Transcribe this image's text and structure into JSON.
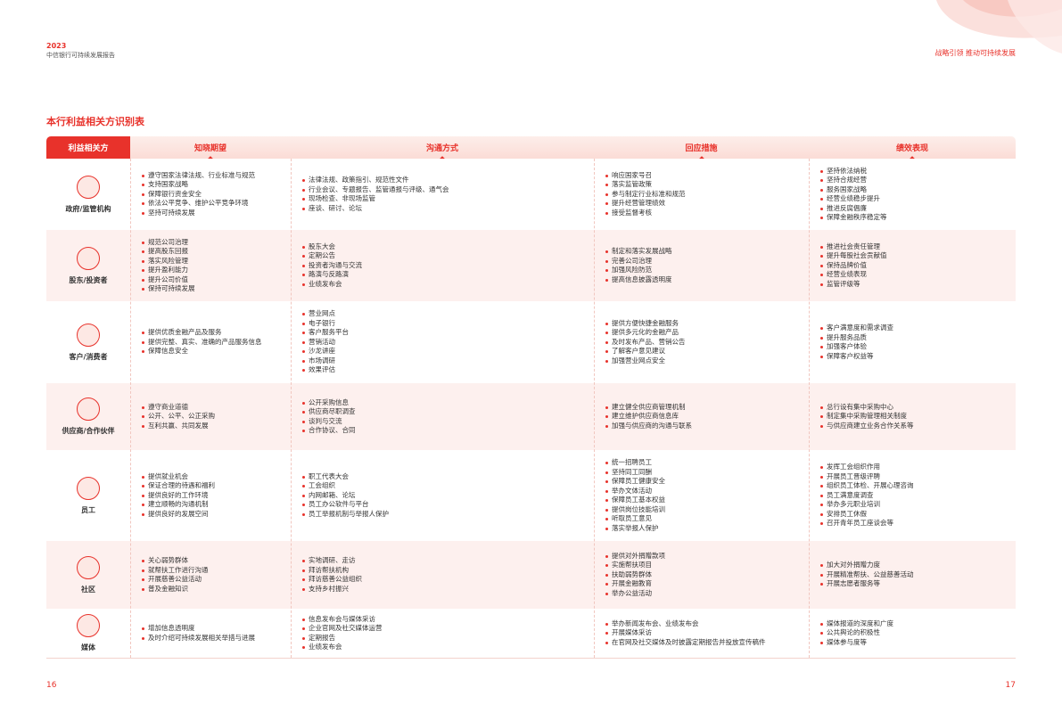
{
  "header": {
    "year": "2023",
    "report": "中信银行可持续发展报告",
    "section": "战略引领 推动可持续发展"
  },
  "title": "本行利益相关方识别表",
  "table": {
    "columns": [
      "利益相关方",
      "知晓期望",
      "沟通方式",
      "回应措施",
      "绩效表现"
    ],
    "rows": [
      {
        "stakeholder": "政府/监管机构",
        "cells": [
          [
            "遵守国家法律法规、行业标准与规范",
            "支持国家战略",
            "保障银行资金安全",
            "依法公平竞争、维护公平竞争环境",
            "坚持可持续发展"
          ],
          [
            "法律法规、政策指引、规范性文件",
            "行业会议、专题报告、监管通报与评级、通气会",
            "现场检查、非现场监管",
            "座谈、研讨、论坛"
          ],
          [
            "响应国家号召",
            "落实监管政策",
            "参与制定行业标准和规范",
            "提升经营管理绩效",
            "接受监督考核"
          ],
          [
            "坚持依法纳税",
            "坚持合规经营",
            "服务国家战略",
            "经营业绩稳步提升",
            "推进反腐倡廉",
            "保障金融秩序稳定等"
          ]
        ]
      },
      {
        "stakeholder": "股东/投资者",
        "cells": [
          [
            "规范公司治理",
            "提高股东回报",
            "落实风险管理",
            "提升盈利能力",
            "提升公司价值",
            "保持可持续发展"
          ],
          [
            "股东大会",
            "定期公告",
            "投资者沟通与交流",
            "路演与反路演",
            "业绩发布会"
          ],
          [
            "制定和落实发展战略",
            "完善公司治理",
            "加强风险防范",
            "提高信息披露透明度"
          ],
          [
            "推进社会责任管理",
            "提升每股社会贡献值",
            "保持品牌价值",
            "经营业绩表现",
            "监管评级等"
          ]
        ]
      },
      {
        "stakeholder": "客户/消费者",
        "cells": [
          [
            "提供优质金融产品及服务",
            "提供完整、真实、准确的产品服务信息",
            "保障信息安全"
          ],
          [
            "营业网点",
            "电子银行",
            "客户服务平台",
            "营销活动",
            "沙龙讲座",
            "市场调研",
            "效果评估"
          ],
          [
            "提供方便快捷金融服务",
            "提供多元化的金融产品",
            "及时发布产品、营销公告",
            "了解客户意见建议",
            "加强营业网点安全"
          ],
          [
            "客户满意度和需求调查",
            "提升服务品质",
            "加强客户体验",
            "保障客户权益等"
          ]
        ]
      },
      {
        "stakeholder": "供应商/合作伙伴",
        "cells": [
          [
            "遵守商业道德",
            "公开、公平、公正采购",
            "互利共赢、共同发展"
          ],
          [
            "公开采购信息",
            "供应商尽职调查",
            "谈判与交流",
            "合作协议、合同"
          ],
          [
            "建立健全供应商管理机制",
            "建立维护供应商信息库",
            "加强与供应商的沟通与联系"
          ],
          [
            "总行设有集中采购中心",
            "制定集中采购管理相关制度",
            "与供应商建立业务合作关系等"
          ]
        ]
      },
      {
        "stakeholder": "员工",
        "cells": [
          [
            "提供就业机会",
            "保证合理的待遇和福利",
            "提供良好的工作环境",
            "建立顺畅的沟通机制",
            "提供良好的发展空间"
          ],
          [
            "职工代表大会",
            "工会组织",
            "内网邮箱、论坛",
            "员工办公软件与平台",
            "员工举报机制与举报人保护"
          ],
          [
            "统一招聘员工",
            "坚持同工同酬",
            "保障员工健康安全",
            "举办文体活动",
            "保障员工基本权益",
            "提供岗位技能培训",
            "听取员工意见",
            "落实举报人保护"
          ],
          [
            "发挥工会组织作用",
            "开展员工晋级评聘",
            "组织员工体检、开展心理咨询",
            "员工满意度调查",
            "举办多元职业培训",
            "安排员工休假",
            "召开青年员工座谈会等"
          ]
        ]
      },
      {
        "stakeholder": "社区",
        "cells": [
          [
            "关心弱势群体",
            "就帮扶工作进行沟通",
            "开展慈善公益活动",
            "普及金融知识"
          ],
          [
            "实地调研、走访",
            "拜访帮扶机构",
            "拜访慈善公益组织",
            "支持乡村振兴"
          ],
          [
            "提供对外捐赠款项",
            "实施帮扶项目",
            "扶助弱势群体",
            "开展金融教育",
            "举办公益活动"
          ],
          [
            "加大对外捐赠力度",
            "开展精准帮扶、公益慈善活动",
            "开展志愿者服务等"
          ]
        ]
      },
      {
        "stakeholder": "媒体",
        "cells": [
          [
            "增加信息透明度",
            "及时介绍可持续发展相关举措与进展"
          ],
          [
            "信息发布会与媒体采访",
            "企业官网及社交媒体运营",
            "定期报告",
            "业绩发布会"
          ],
          [
            "举办新闻发布会、业绩发布会",
            "开展媒体采访",
            "在官网及社交媒体及时披露定期报告并投放宣传稿件"
          ],
          [
            "媒体报道的深度和广度",
            "公共舆论的积极性",
            "媒体参与度等"
          ]
        ]
      }
    ]
  },
  "footer": {
    "left_page": "16",
    "right_page": "17"
  }
}
